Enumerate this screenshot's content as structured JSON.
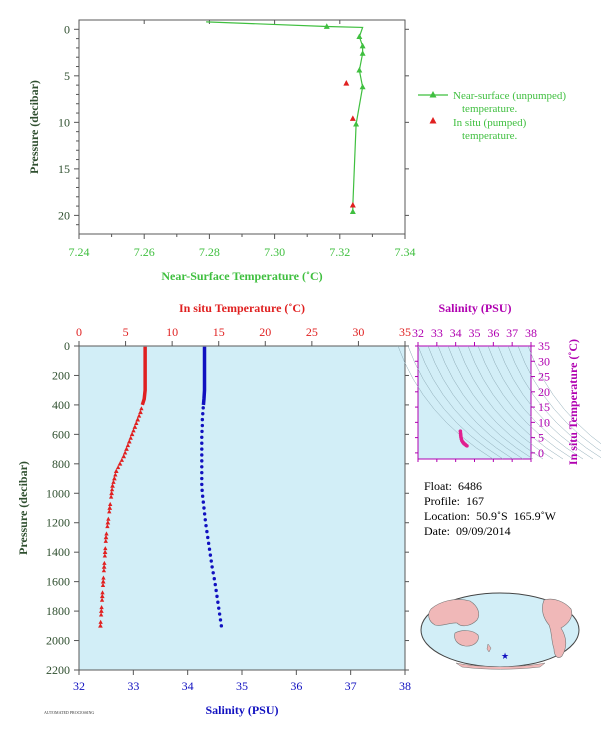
{
  "chart_data": [
    {
      "type": "line",
      "xlabel": "Near-Surface Temperature (˚C)",
      "ylabel": "Pressure (decibar)",
      "xlim": [
        7.24,
        7.34
      ],
      "ylim": [
        22,
        -1
      ],
      "xticks": [
        "7.24",
        "7.26",
        "7.28",
        "7.30",
        "7.32",
        "7.34"
      ],
      "yticks": [
        "0",
        "5",
        "10",
        "15",
        "20"
      ],
      "series": [
        {
          "name": "Near-surface (unpumped) temperature.",
          "color": "#3fbf3f",
          "marker": "triangle",
          "x": [
            7.279,
            7.316,
            7.327,
            7.326,
            7.327,
            7.327,
            7.326,
            7.327,
            7.325,
            7.324,
            7.324
          ],
          "y": [
            -0.8,
            -0.3,
            -0.2,
            0.8,
            1.8,
            2.6,
            4.4,
            6.2,
            10.2,
            18.9,
            19.6
          ],
          "markers_y": [
            -0.3,
            0.8,
            1.8,
            2.6,
            4.4,
            6.2,
            10.2,
            19.6
          ]
        },
        {
          "name": "In situ (pumped) temperature.",
          "color": "#e02020",
          "marker": "triangle",
          "x": [
            7.322,
            7.324,
            7.324
          ],
          "y": [
            5.8,
            9.6,
            18.9
          ]
        }
      ],
      "legend": [
        {
          "line1": "Near-surface (unpumped)",
          "line2": "temperature."
        },
        {
          "line1": "In situ (pumped)",
          "line2": "temperature."
        }
      ]
    },
    {
      "type": "line",
      "ylabel": "Pressure (decibar)",
      "top_xlabel": "In situ Temperature (˚C)",
      "bottom_xlabel": "Salinity (PSU)",
      "temp_lim": [
        0,
        35
      ],
      "sal_lim": [
        32,
        38
      ],
      "ylim": [
        0,
        2200
      ],
      "temp_ticks": [
        "0",
        "5",
        "10",
        "15",
        "20",
        "25",
        "30",
        "35"
      ],
      "sal_ticks": [
        "32",
        "33",
        "34",
        "35",
        "36",
        "37",
        "38"
      ],
      "yticks": [
        "0",
        "200",
        "400",
        "600",
        "800",
        "1000",
        "1200",
        "1400",
        "1600",
        "1800",
        "2000",
        "2200"
      ],
      "series": [
        {
          "name": "temperature",
          "color": "#e02020",
          "pressure": [
            5,
            100,
            200,
            300,
            360,
            400,
            450,
            500,
            550,
            600,
            650,
            700,
            750,
            800,
            850,
            900,
            950,
            1000,
            1100,
            1200,
            1300,
            1400,
            1500,
            1600,
            1700,
            1800,
            1900
          ],
          "value": [
            7.1,
            7.1,
            7.1,
            7.1,
            7.0,
            6.8,
            6.6,
            6.3,
            6.0,
            5.7,
            5.4,
            5.1,
            4.8,
            4.4,
            4.0,
            3.8,
            3.6,
            3.5,
            3.3,
            3.1,
            2.9,
            2.8,
            2.7,
            2.6,
            2.5,
            2.4,
            2.3
          ]
        },
        {
          "name": "salinity",
          "color": "#1010c0",
          "pressure": [
            5,
            100,
            200,
            300,
            360,
            400,
            450,
            500,
            550,
            600,
            650,
            700,
            750,
            800,
            850,
            900,
            950,
            1000,
            1100,
            1200,
            1300,
            1400,
            1500,
            1600,
            1700,
            1800,
            1900
          ],
          "value": [
            34.31,
            34.31,
            34.31,
            34.31,
            34.3,
            34.29,
            34.28,
            34.27,
            34.27,
            34.26,
            34.26,
            34.26,
            34.26,
            34.26,
            34.26,
            34.26,
            34.26,
            34.27,
            34.3,
            34.33,
            34.37,
            34.41,
            34.45,
            34.5,
            34.54,
            34.58,
            34.62
          ]
        }
      ]
    },
    {
      "type": "scatter",
      "xlabel": "Salinity (PSU)",
      "ylabel": "In situ Temperature (˚C)",
      "xlim": [
        32,
        38
      ],
      "ylim": [
        -2,
        35
      ],
      "xticks": [
        "32",
        "33",
        "34",
        "35",
        "36",
        "37",
        "38"
      ],
      "yticks": [
        "0",
        "5",
        "10",
        "15",
        "20",
        "25",
        "30",
        "35"
      ],
      "points": {
        "salinity": [
          34.25,
          34.26,
          34.27,
          34.28,
          34.3,
          34.33,
          34.37,
          34.41,
          34.45,
          34.5,
          34.55,
          34.6
        ],
        "temperature": [
          7.1,
          6.4,
          5.8,
          5.2,
          4.6,
          4.0,
          3.6,
          3.3,
          3.0,
          2.8,
          2.5,
          2.3
        ]
      },
      "color": "#e0208f"
    }
  ],
  "info": {
    "float": "Float:  6486",
    "profile": "Profile:  167",
    "location": "Location:  50.9˚S  165.9˚W",
    "date": "Date:  09/09/2014"
  },
  "footnote": "AUTOMATED PROCESSING"
}
